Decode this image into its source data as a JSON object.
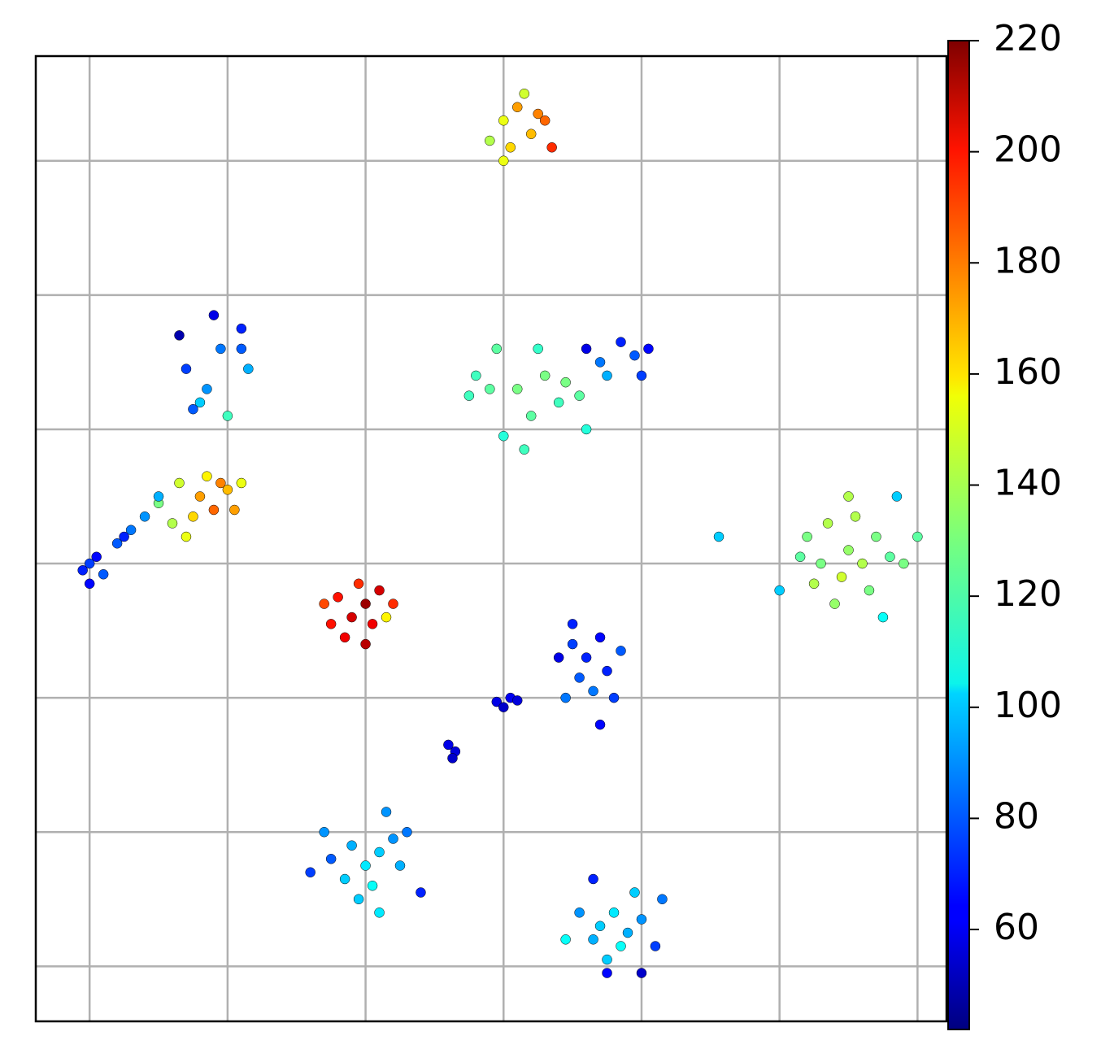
{
  "chart_data": {
    "type": "scatter",
    "x": [
      3.0,
      3.1,
      3.2,
      3.3,
      2.9,
      3.05,
      3.35,
      3.15,
      3.25,
      3.0,
      2.8,
      2.95,
      3.1,
      3.2,
      3.0,
      3.3,
      3.4,
      3.55,
      2.9,
      3.15,
      3.45,
      3.6,
      2.75,
      3.25,
      3.7,
      3.85,
      3.95,
      3.6,
      4.0,
      3.75,
      4.05,
      0.7,
      0.85,
      0.95,
      0.9,
      1.1,
      1.15,
      0.65,
      0.8,
      1.0,
      1.1,
      0.75,
      0.65,
      0.8,
      0.9,
      0.75,
      1.0,
      0.85,
      0.6,
      1.05,
      0.95,
      0.7,
      0.5,
      1.1,
      0.0,
      0.05,
      -0.05,
      0.1,
      0.2,
      0.3,
      0.4,
      0.5,
      0.25,
      0.0,
      1.8,
      1.9,
      2.0,
      1.95,
      2.05,
      1.75,
      1.85,
      2.1,
      2.0,
      2.2,
      1.7,
      2.15,
      5.2,
      5.35,
      5.5,
      5.6,
      5.45,
      5.3,
      5.7,
      5.55,
      5.4,
      5.65,
      5.8,
      5.25,
      5.5,
      5.15,
      5.9,
      6.0,
      5.0,
      5.75,
      5.85,
      3.5,
      3.6,
      3.7,
      3.55,
      3.65,
      3.75,
      3.4,
      3.8,
      3.5,
      3.85,
      3.7,
      3.45,
      2.95,
      3.05,
      3.1,
      3.0,
      2.6,
      2.65,
      2.63,
      1.75,
      1.9,
      2.0,
      2.1,
      2.2,
      1.85,
      2.05,
      1.95,
      2.25,
      1.7,
      2.15,
      2.3,
      2.4,
      1.6,
      2.1,
      3.7,
      3.8,
      3.9,
      3.85,
      3.65,
      4.0,
      3.75,
      4.15,
      3.55,
      3.95,
      4.1,
      3.65,
      4.0,
      3.75,
      3.45,
      4.56
    ],
    "y": [
      6.3,
      6.4,
      6.2,
      6.3,
      6.15,
      6.1,
      6.1,
      6.5,
      6.35,
      6.0,
      4.4,
      4.6,
      4.3,
      4.1,
      3.95,
      4.4,
      4.2,
      4.25,
      4.3,
      3.85,
      4.35,
      4.0,
      4.25,
      4.6,
      4.5,
      4.65,
      4.55,
      4.6,
      4.4,
      4.4,
      4.6,
      4.45,
      4.3,
      4.6,
      4.85,
      4.6,
      4.45,
      4.7,
      4.2,
      4.1,
      4.75,
      4.15,
      3.6,
      3.5,
      3.4,
      3.35,
      3.55,
      3.65,
      3.3,
      3.4,
      3.6,
      3.2,
      3.45,
      3.6,
      3.0,
      3.05,
      2.95,
      2.92,
      3.15,
      3.25,
      3.35,
      3.5,
      3.2,
      2.85,
      2.75,
      2.6,
      2.7,
      2.85,
      2.55,
      2.55,
      2.45,
      2.8,
      2.4,
      2.7,
      2.7,
      2.6,
      3.2,
      3.3,
      3.1,
      3.0,
      2.9,
      3.0,
      3.2,
      3.35,
      2.7,
      2.8,
      3.05,
      2.85,
      3.5,
      3.05,
      3.0,
      3.2,
      2.8,
      2.6,
      3.5,
      2.4,
      2.3,
      2.45,
      2.15,
      2.05,
      2.2,
      2.3,
      2.0,
      2.55,
      2.35,
      1.8,
      2.0,
      1.97,
      2.0,
      1.98,
      1.93,
      1.65,
      1.6,
      1.55,
      0.8,
      0.9,
      0.75,
      0.85,
      0.95,
      0.65,
      0.6,
      0.5,
      0.75,
      1.0,
      1.15,
      1.0,
      0.55,
      0.7,
      0.4,
      0.3,
      0.4,
      0.25,
      0.15,
      0.2,
      0.35,
      0.05,
      0.5,
      0.4,
      0.55,
      0.15,
      0.65,
      -0.05,
      -0.05,
      0.2,
      3.2
    ],
    "color_values": [
      150,
      170,
      165,
      180,
      140,
      160,
      190,
      145,
      175,
      150,
      120,
      125,
      130,
      125,
      115,
      130,
      120,
      125,
      125,
      120,
      130,
      115,
      120,
      118,
      85,
      70,
      80,
      60,
      75,
      95,
      65,
      75,
      90,
      85,
      60,
      80,
      95,
      50,
      100,
      120,
      70,
      80,
      145,
      170,
      180,
      160,
      165,
      155,
      140,
      170,
      175,
      150,
      130,
      150,
      75,
      65,
      70,
      80,
      80,
      85,
      90,
      95,
      70,
      65,
      195,
      205,
      215,
      190,
      200,
      195,
      200,
      205,
      210,
      190,
      185,
      155,
      130,
      140,
      135,
      140,
      145,
      130,
      130,
      140,
      135,
      130,
      125,
      140,
      140,
      125,
      130,
      125,
      100,
      110,
      100,
      75,
      70,
      65,
      80,
      85,
      70,
      60,
      75,
      70,
      80,
      65,
      85,
      60,
      62,
      58,
      55,
      60,
      58,
      55,
      80,
      95,
      105,
      100,
      90,
      100,
      110,
      100,
      95,
      90,
      90,
      85,
      70,
      75,
      105,
      100,
      105,
      95,
      110,
      95,
      90,
      100,
      85,
      90,
      100,
      75,
      70,
      55,
      65,
      110,
      100
    ],
    "xlim": [
      -0.39,
      6.21
    ],
    "xticks": [
      0,
      1,
      2,
      3,
      4,
      5,
      6
    ],
    "ylim": [
      -0.41,
      6.78
    ],
    "yticks": [
      0,
      1,
      2,
      3,
      4,
      5,
      6
    ],
    "grid": true,
    "colorbar": {
      "cmap": "jet",
      "lim": [
        42,
        220
      ],
      "ticks": [
        60,
        80,
        100,
        120,
        140,
        160,
        180,
        200,
        220
      ]
    }
  }
}
